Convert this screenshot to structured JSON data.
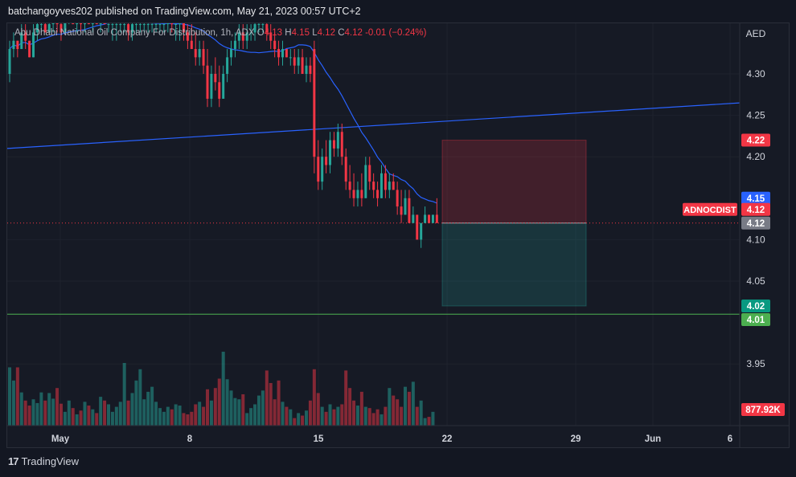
{
  "header": {
    "publisher_line": "batchangoyves202 published on TradingView.com, May 21, 2023 00:57 UTC+2"
  },
  "legend": {
    "symbol_name": "Abu Dhabi National Oil Company For Distribution",
    "interval": "1h",
    "exchange": "ADX",
    "o_label": "O",
    "o_value": "4.13",
    "h_label": "H",
    "h_value": "4.15",
    "l_label": "L",
    "l_value": "4.12",
    "c_label": "C",
    "c_value": "4.12",
    "change": "-0.01 (−0.24%)"
  },
  "colors": {
    "background": "#161a25",
    "up": "#26a69a",
    "down": "#f23645",
    "ma_line": "#2962ff",
    "trend_line": "#2962ff",
    "target_line": "#4caf50",
    "stop_zone": "#f23645",
    "target_zone": "#26a69a"
  },
  "footer": {
    "brand": "TradingView",
    "logo_text": "17"
  },
  "chart_data": {
    "type": "candlestick",
    "currency_label": "AED",
    "symbol_tag": "ADNOCDIST",
    "y_range": [
      3.9,
      4.37
    ],
    "y_ticks": [
      4.3,
      4.25,
      4.2,
      4.1,
      4.05,
      3.95
    ],
    "x_tick_labels": [
      "May",
      "8",
      "15",
      "22",
      "29",
      "Jun",
      "6"
    ],
    "price_tags": [
      {
        "label": "4.22",
        "value": 4.22,
        "kind": "stop"
      },
      {
        "label": "4.15",
        "value": 4.15,
        "kind": "high"
      },
      {
        "label": "4.12",
        "value": 4.12,
        "kind": "last"
      },
      {
        "label": "4.12",
        "value": 4.12,
        "kind": "close"
      },
      {
        "label": "4.02",
        "value": 4.02,
        "kind": "target"
      },
      {
        "label": "4.01",
        "value": 4.01,
        "kind": "line"
      }
    ],
    "volume_tag": "877.92K",
    "last_price": 4.12,
    "position": {
      "entry": 4.12,
      "stop": 4.22,
      "target": 4.02
    },
    "target_line": 4.01,
    "trend_line": {
      "start": 4.21,
      "end": 4.265
    },
    "candles": [
      [
        4.3,
        4.34,
        4.29,
        4.33
      ],
      [
        4.33,
        4.35,
        4.32,
        4.34
      ],
      [
        4.34,
        4.34,
        4.32,
        4.33
      ],
      [
        4.33,
        4.36,
        4.33,
        4.35
      ],
      [
        4.35,
        4.36,
        4.33,
        4.34
      ],
      [
        4.34,
        4.34,
        4.32,
        4.32
      ],
      [
        4.32,
        4.36,
        4.32,
        4.35
      ],
      [
        4.35,
        4.37,
        4.34,
        4.36
      ],
      [
        4.36,
        4.37,
        4.35,
        4.36
      ],
      [
        4.36,
        4.37,
        4.35,
        4.35
      ],
      [
        4.35,
        4.37,
        4.35,
        4.36
      ],
      [
        4.36,
        4.37,
        4.35,
        4.37
      ],
      [
        4.37,
        4.37,
        4.35,
        4.36
      ],
      [
        4.36,
        4.37,
        4.34,
        4.35
      ],
      [
        4.35,
        4.37,
        4.35,
        4.37
      ],
      [
        4.37,
        4.37,
        4.36,
        4.37
      ],
      [
        4.37,
        4.37,
        4.36,
        4.36
      ],
      [
        4.36,
        4.37,
        4.35,
        4.37
      ],
      [
        4.37,
        4.37,
        4.35,
        4.36
      ],
      [
        4.36,
        4.37,
        4.35,
        4.37
      ],
      [
        4.37,
        4.37,
        4.36,
        4.36
      ],
      [
        4.36,
        4.37,
        4.35,
        4.37
      ],
      [
        4.37,
        4.37,
        4.36,
        4.36
      ],
      [
        4.36,
        4.37,
        4.35,
        4.37
      ],
      [
        4.37,
        4.37,
        4.36,
        4.36
      ],
      [
        4.36,
        4.37,
        4.35,
        4.36
      ],
      [
        4.36,
        4.37,
        4.34,
        4.36
      ],
      [
        4.36,
        4.37,
        4.34,
        4.36
      ],
      [
        4.36,
        4.37,
        4.35,
        4.36
      ],
      [
        4.36,
        4.37,
        4.35,
        4.36
      ],
      [
        4.36,
        4.37,
        4.34,
        4.35
      ],
      [
        4.35,
        4.37,
        4.34,
        4.36
      ],
      [
        4.36,
        4.37,
        4.35,
        4.36
      ],
      [
        4.36,
        4.37,
        4.35,
        4.36
      ],
      [
        4.36,
        4.37,
        4.35,
        4.36
      ],
      [
        4.36,
        4.37,
        4.35,
        4.36
      ],
      [
        4.36,
        4.37,
        4.35,
        4.36
      ],
      [
        4.36,
        4.37,
        4.35,
        4.36
      ],
      [
        4.36,
        4.37,
        4.35,
        4.36
      ],
      [
        4.36,
        4.37,
        4.35,
        4.36
      ],
      [
        4.36,
        4.37,
        4.35,
        4.37
      ],
      [
        4.37,
        4.37,
        4.35,
        4.36
      ],
      [
        4.36,
        4.37,
        4.34,
        4.36
      ],
      [
        4.36,
        4.37,
        4.34,
        4.37
      ],
      [
        4.37,
        4.37,
        4.34,
        4.35
      ],
      [
        4.35,
        4.36,
        4.33,
        4.34
      ],
      [
        4.34,
        4.36,
        4.33,
        4.33
      ],
      [
        4.33,
        4.35,
        4.31,
        4.32
      ],
      [
        4.32,
        4.34,
        4.31,
        4.33
      ],
      [
        4.33,
        4.34,
        4.3,
        4.31
      ],
      [
        4.31,
        4.33,
        4.26,
        4.27
      ],
      [
        4.27,
        4.31,
        4.26,
        4.3
      ],
      [
        4.3,
        4.32,
        4.28,
        4.29
      ],
      [
        4.29,
        4.31,
        4.26,
        4.27
      ],
      [
        4.27,
        4.31,
        4.27,
        4.3
      ],
      [
        4.3,
        4.33,
        4.29,
        4.32
      ],
      [
        4.32,
        4.34,
        4.31,
        4.33
      ],
      [
        4.33,
        4.35,
        4.32,
        4.34
      ],
      [
        4.34,
        4.36,
        4.33,
        4.35
      ],
      [
        4.35,
        4.36,
        4.33,
        4.34
      ],
      [
        4.34,
        4.36,
        4.33,
        4.35
      ],
      [
        4.35,
        4.36,
        4.34,
        4.35
      ],
      [
        4.35,
        4.37,
        4.34,
        4.36
      ],
      [
        4.36,
        4.37,
        4.35,
        4.36
      ],
      [
        4.36,
        4.37,
        4.35,
        4.36
      ],
      [
        4.36,
        4.37,
        4.34,
        4.35
      ],
      [
        4.35,
        4.36,
        4.33,
        4.34
      ],
      [
        4.34,
        4.35,
        4.32,
        4.33
      ],
      [
        4.33,
        4.34,
        4.31,
        4.32
      ],
      [
        4.32,
        4.34,
        4.31,
        4.33
      ],
      [
        4.33,
        4.33,
        4.32,
        4.32
      ],
      [
        4.32,
        4.33,
        4.31,
        4.32
      ],
      [
        4.32,
        4.33,
        4.3,
        4.31
      ],
      [
        4.31,
        4.33,
        4.3,
        4.32
      ],
      [
        4.32,
        4.33,
        4.3,
        4.3
      ],
      [
        4.3,
        4.32,
        4.29,
        4.31
      ],
      [
        4.31,
        4.32,
        4.29,
        4.3
      ],
      [
        4.33,
        4.34,
        4.18,
        4.2
      ],
      [
        4.2,
        4.22,
        4.16,
        4.17
      ],
      [
        4.17,
        4.21,
        4.16,
        4.2
      ],
      [
        4.2,
        4.22,
        4.18,
        4.19
      ],
      [
        4.19,
        4.23,
        4.18,
        4.22
      ],
      [
        4.22,
        4.23,
        4.2,
        4.21
      ],
      [
        4.21,
        4.24,
        4.2,
        4.23
      ],
      [
        4.23,
        4.24,
        4.19,
        4.2
      ],
      [
        4.2,
        4.21,
        4.16,
        4.17
      ],
      [
        4.17,
        4.19,
        4.15,
        4.16
      ],
      [
        4.16,
        4.18,
        4.14,
        4.15
      ],
      [
        4.15,
        4.17,
        4.14,
        4.16
      ],
      [
        4.16,
        4.18,
        4.14,
        4.15
      ],
      [
        4.15,
        4.2,
        4.15,
        4.19
      ],
      [
        4.19,
        4.2,
        4.16,
        4.17
      ],
      [
        4.17,
        4.18,
        4.15,
        4.16
      ],
      [
        4.16,
        4.17,
        4.14,
        4.15
      ],
      [
        4.15,
        4.19,
        4.15,
        4.18
      ],
      [
        4.18,
        4.19,
        4.15,
        4.16
      ],
      [
        4.16,
        4.18,
        4.15,
        4.17
      ],
      [
        4.17,
        4.18,
        4.16,
        4.16
      ],
      [
        4.16,
        4.17,
        4.13,
        4.14
      ],
      [
        4.14,
        4.16,
        4.12,
        4.13
      ],
      [
        4.13,
        4.16,
        4.13,
        4.15
      ],
      [
        4.15,
        4.16,
        4.12,
        4.12
      ],
      [
        4.12,
        4.14,
        4.12,
        4.13
      ],
      [
        4.13,
        4.13,
        4.1,
        4.1
      ],
      [
        4.1,
        4.12,
        4.09,
        4.12
      ],
      [
        4.12,
        4.14,
        4.12,
        4.13
      ],
      [
        4.13,
        4.13,
        4.12,
        4.12
      ],
      [
        4.12,
        4.13,
        4.12,
        4.13
      ],
      [
        4.13,
        4.15,
        4.12,
        4.12
      ]
    ],
    "volumes": [
      0.93,
      0.72,
      0.93,
      0.53,
      0.4,
      0.32,
      0.42,
      0.36,
      0.53,
      0.4,
      0.52,
      0.43,
      0.6,
      0.35,
      0.22,
      0.4,
      0.28,
      0.18,
      0.24,
      0.38,
      0.32,
      0.26,
      0.2,
      0.46,
      0.4,
      0.34,
      0.22,
      0.3,
      0.38,
      1.0,
      0.4,
      0.52,
      0.72,
      0.9,
      0.42,
      0.54,
      0.62,
      0.38,
      0.28,
      0.22,
      0.3,
      0.26,
      0.34,
      0.32,
      0.2,
      0.18,
      0.22,
      0.34,
      0.38,
      0.3,
      0.58,
      0.4,
      0.6,
      0.75,
      1.18,
      0.74,
      0.56,
      0.44,
      0.42,
      0.5,
      0.2,
      0.28,
      0.34,
      0.48,
      0.56,
      0.88,
      0.68,
      0.42,
      0.72,
      0.38,
      0.3,
      0.26,
      0.12,
      0.2,
      0.16,
      0.24,
      0.4,
      0.9,
      0.52,
      0.3,
      0.22,
      0.34,
      0.26,
      0.3,
      0.34,
      0.88,
      0.6,
      0.4,
      0.32,
      0.54,
      0.3,
      0.28,
      0.2,
      0.26,
      0.18,
      0.3,
      0.6,
      0.48,
      0.42,
      0.3,
      0.62,
      0.54,
      0.7,
      0.3,
      0.4,
      0.12,
      0.14,
      0.22
    ]
  }
}
